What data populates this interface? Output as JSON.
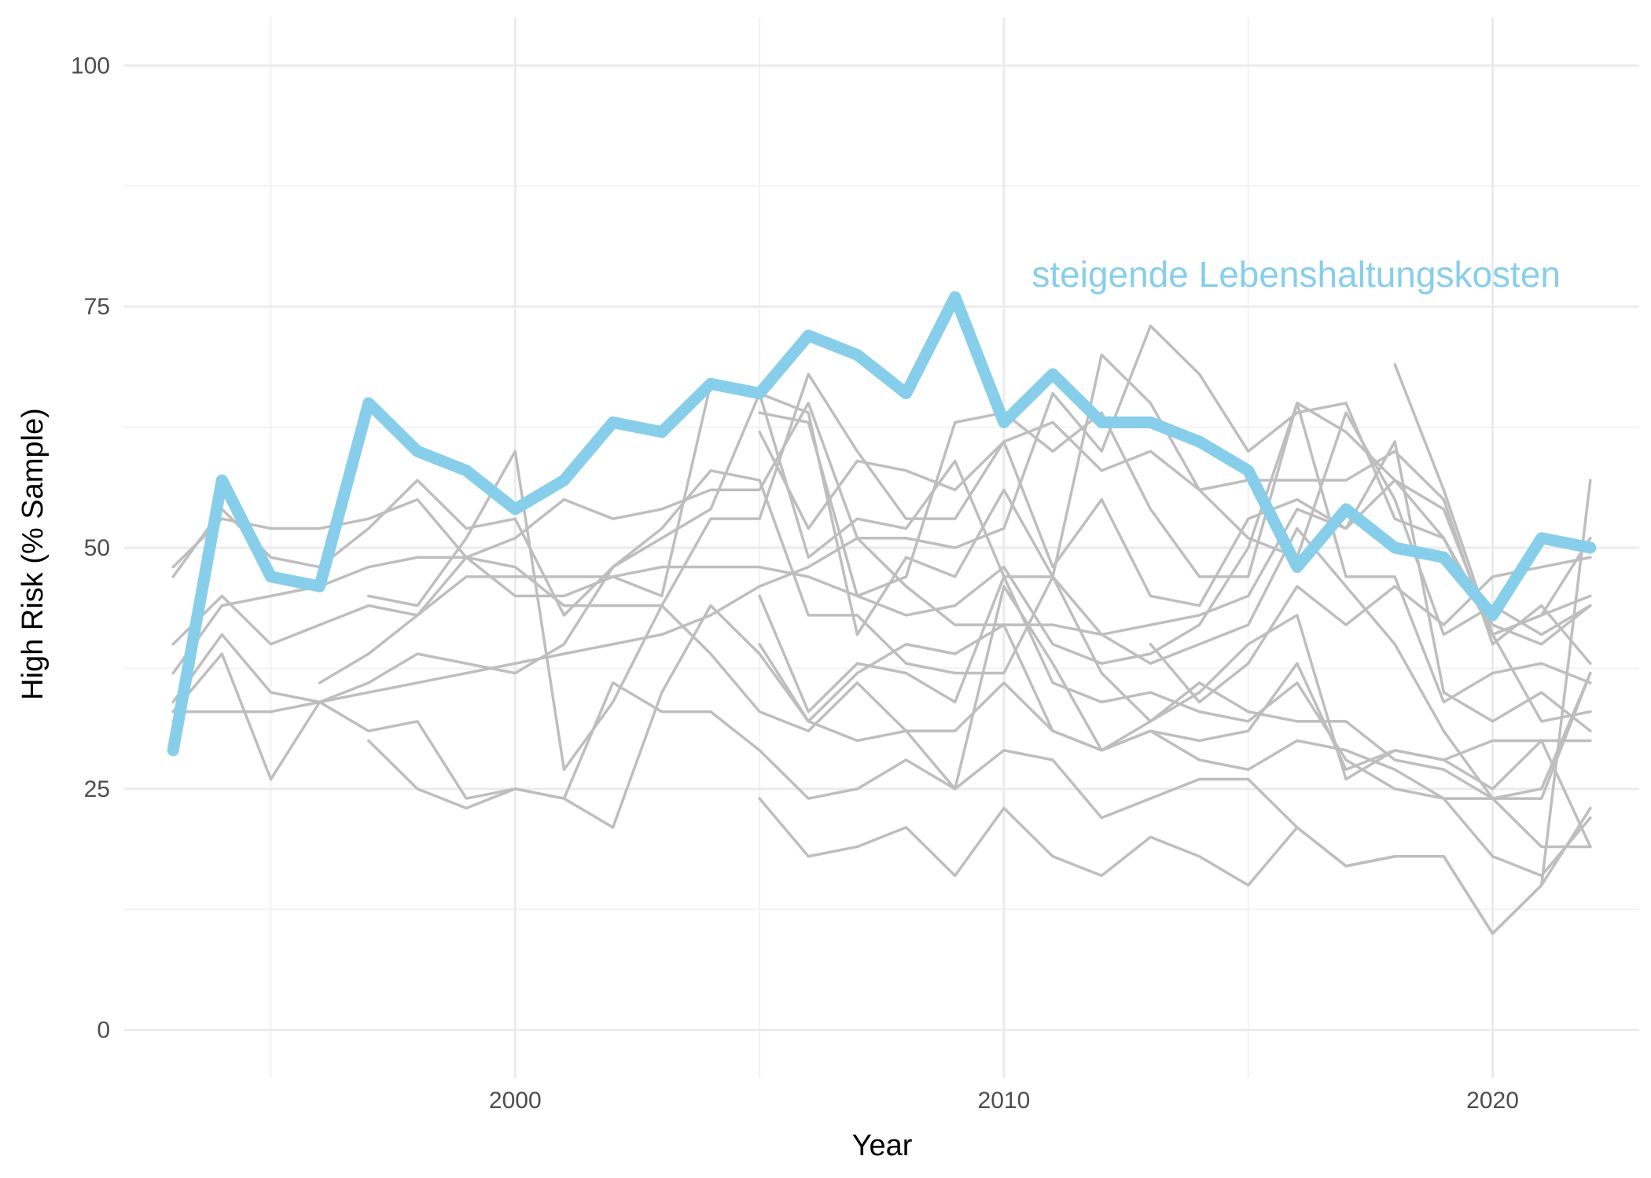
{
  "chart_data": {
    "type": "line",
    "title": "",
    "xlabel": "Year",
    "ylabel": "High Risk (% Sample)",
    "xlim": [
      1992,
      2023
    ],
    "ylim": [
      -5,
      105
    ],
    "x_ticks": [
      2000,
      2010,
      2020
    ],
    "y_ticks": [
      0,
      25,
      50,
      75,
      100
    ],
    "grid": true,
    "legend": "none",
    "colors": {
      "highlight": "#87ceeb",
      "background_series": "#bebebe",
      "grid": "#ebebeb"
    },
    "highlight": {
      "name": "steigende Lebenshaltungskosten",
      "label": "steigende Lebenshaltungskosten",
      "x": [
        1993,
        1994,
        1995,
        1996,
        1997,
        1998,
        1999,
        2000,
        2001,
        2002,
        2003,
        2004,
        2005,
        2006,
        2007,
        2008,
        2009,
        2010,
        2011,
        2012,
        2013,
        2014,
        2015,
        2016,
        2017,
        2018,
        2019,
        2020,
        2021,
        2022
      ],
      "values": [
        29,
        57,
        47,
        46,
        65,
        60,
        58,
        54,
        57,
        63,
        62,
        67,
        66,
        72,
        70,
        66,
        76,
        63,
        68,
        63,
        63,
        61,
        58,
        48,
        54,
        50,
        49,
        43,
        51,
        50
      ]
    },
    "series": [
      {
        "x": [
          1993,
          1994,
          1995,
          1996,
          1997,
          1998,
          1999,
          2000,
          2001,
          2002,
          2003,
          2004,
          2005,
          2006,
          2007,
          2008,
          2009,
          2010,
          2011,
          2012,
          2013,
          2014,
          2015,
          2016,
          2017,
          2018,
          2019,
          2020,
          2021,
          2022
        ],
        "values": [
          48,
          53,
          52,
          52,
          53,
          55,
          49,
          51,
          55,
          53,
          54,
          56,
          56,
          65,
          51,
          51,
          50,
          52,
          66,
          60,
          73,
          68,
          60,
          64,
          65,
          53,
          51,
          42,
          40,
          44
        ]
      },
      {
        "x": [
          1993,
          1994,
          1995,
          1996,
          1997,
          1998,
          1999,
          2000,
          2001,
          2002,
          2003,
          2004,
          2005,
          2006,
          2007,
          2008,
          2009,
          2010,
          2011,
          2012,
          2013,
          2014,
          2015,
          2016,
          2017,
          2018,
          2019,
          2020,
          2021,
          2022
        ],
        "values": [
          47,
          54,
          49,
          48,
          52,
          57,
          52,
          53,
          43,
          48,
          51,
          54,
          66,
          64,
          41,
          49,
          47,
          56,
          47,
          70,
          65,
          56,
          51,
          49,
          64,
          55,
          41,
          44,
          41,
          44
        ]
      },
      {
        "x": [
          1993,
          1994,
          1995,
          1996,
          1997,
          1998,
          1999,
          2000,
          2001,
          2002,
          2003,
          2004,
          2005,
          2006,
          2007,
          2008,
          2009,
          2010,
          2011,
          2012,
          2013,
          2014,
          2015,
          2016,
          2017,
          2018,
          2019,
          2020,
          2021,
          2022
        ],
        "values": [
          40,
          45,
          40,
          42,
          44,
          43,
          49,
          48,
          44,
          44,
          44,
          53,
          53,
          68,
          60,
          53,
          53,
          61,
          63,
          58,
          60,
          56,
          57,
          57,
          57,
          60,
          55,
          40,
          44,
          38
        ]
      },
      {
        "x": [
          1993,
          1994,
          1995,
          1996,
          1997,
          1998,
          1999,
          2000,
          2001,
          2002,
          2003,
          2004,
          2005,
          2006,
          2007,
          2008,
          2009,
          2010,
          2011,
          2012,
          2013,
          2014,
          2015,
          2016,
          2017,
          2018,
          2019,
          2020,
          2021,
          2022
        ],
        "values": [
          37,
          44,
          45,
          46,
          48,
          49,
          49,
          45,
          45,
          47,
          45,
          67,
          66,
          49,
          53,
          52,
          59,
          47,
          47,
          41,
          42,
          43,
          45,
          54,
          52,
          57,
          51,
          41,
          32,
          33
        ]
      },
      {
        "x": [
          1993,
          1994,
          1995,
          1996,
          1997,
          1998,
          1999,
          2000,
          2001,
          2002,
          2003,
          2004,
          2005,
          2006,
          2007,
          2008,
          2009,
          2010,
          2011,
          2012,
          2013,
          2014,
          2015,
          2016,
          2017,
          2018,
          2019,
          2020,
          2021,
          2022
        ],
        "values": [
          34,
          41,
          35,
          34,
          36,
          39,
          38,
          37,
          40,
          48,
          52,
          58,
          57,
          43,
          43,
          38,
          37,
          37,
          47,
          37,
          32,
          36,
          33,
          32,
          32,
          28,
          27,
          24,
          25,
          37
        ]
      },
      {
        "x": [
          1993,
          1994,
          1995,
          1996,
          1997,
          1998,
          1999,
          2000,
          2001,
          2002,
          2003,
          2004,
          2005,
          2006,
          2007,
          2008,
          2009,
          2010,
          2011,
          2012,
          2013,
          2014,
          2015,
          2016,
          2017,
          2018,
          2019,
          2020,
          2021,
          2022
        ],
        "values": [
          33,
          39,
          26,
          34,
          31,
          32,
          24,
          25,
          24,
          21,
          35,
          44,
          39,
          32,
          30,
          31,
          25,
          46,
          38,
          29,
          31,
          30,
          31,
          38,
          27,
          29,
          28,
          30,
          30,
          19
        ]
      },
      {
        "x": [
          1993,
          1994,
          1995,
          1996,
          1997,
          1998,
          1999,
          2000,
          2001,
          2002,
          2003,
          2004,
          2005,
          2006,
          2007,
          2008,
          2009,
          2010,
          2011,
          2012,
          2013,
          2014,
          2015,
          2016,
          2017,
          2018,
          2019,
          2020,
          2021,
          2022
        ],
        "values": [
          33,
          33,
          33,
          34,
          35,
          36,
          37,
          38,
          39,
          40,
          41,
          43,
          46,
          48,
          51,
          46,
          42,
          42,
          31,
          29,
          32,
          35,
          40,
          43,
          26,
          29,
          28,
          25,
          30,
          30
        ]
      },
      {
        "x": [
          1996,
          1997,
          1998,
          1999,
          2000,
          2001,
          2002,
          2003,
          2004,
          2005,
          2006,
          2007,
          2008,
          2009,
          2010,
          2011,
          2012,
          2013,
          2014,
          2015,
          2016,
          2017,
          2018,
          2019,
          2020,
          2021,
          2022
        ],
        "values": [
          36,
          39,
          43,
          47,
          47,
          47,
          47,
          48,
          48,
          48,
          47,
          45,
          43,
          44,
          48,
          40,
          38,
          39,
          42,
          50,
          65,
          62,
          57,
          54,
          41,
          43,
          45
        ]
      },
      {
        "x": [
          1997,
          1998,
          1999,
          2000,
          2001,
          2002,
          2003,
          2004,
          2005,
          2006,
          2007,
          2008,
          2009,
          2010,
          2011,
          2012,
          2013,
          2014,
          2015,
          2016,
          2017,
          2018,
          2019,
          2020,
          2021,
          2022
        ],
        "values": [
          45,
          44,
          51,
          60,
          27,
          34,
          44,
          39,
          33,
          31,
          36,
          31,
          31,
          36,
          31,
          29,
          31,
          28,
          27,
          30,
          29,
          27,
          24,
          24,
          19,
          19
        ]
      },
      {
        "x": [
          1997,
          1998,
          1999,
          2000,
          2001,
          2002,
          2003,
          2004,
          2005,
          2006,
          2007,
          2008,
          2009,
          2010,
          2011,
          2012,
          2013,
          2014,
          2015,
          2016,
          2017,
          2018,
          2019,
          2020,
          2021,
          2022
        ],
        "values": [
          30,
          25,
          23,
          25,
          24,
          36,
          33,
          33,
          29,
          24,
          25,
          28,
          25,
          29,
          28,
          22,
          24,
          26,
          26,
          21,
          17,
          18,
          18,
          10,
          15,
          23
        ]
      },
      {
        "x": [
          2005,
          2006,
          2007,
          2008,
          2009,
          2010,
          2011,
          2012,
          2013,
          2014,
          2015,
          2016,
          2017,
          2018,
          2019,
          2020,
          2021,
          2022
        ],
        "values": [
          45,
          33,
          38,
          37,
          34,
          47,
          36,
          34,
          35,
          33,
          32,
          36,
          28,
          25,
          24,
          18,
          16,
          22
        ]
      },
      {
        "x": [
          2005,
          2006,
          2007,
          2008,
          2009,
          2010,
          2011,
          2012,
          2013,
          2014,
          2015,
          2016,
          2017,
          2018,
          2019,
          2020,
          2021,
          2022
        ],
        "values": [
          40,
          32,
          37,
          40,
          39,
          42,
          42,
          41,
          38,
          40,
          42,
          52,
          46,
          40,
          31,
          24,
          24,
          37
        ]
      },
      {
        "x": [
          2005,
          2006,
          2007,
          2008,
          2009,
          2010,
          2011,
          2012,
          2013,
          2014,
          2015,
          2016,
          2017,
          2018,
          2019,
          2020,
          2021,
          2022
        ],
        "values": [
          24,
          18,
          19,
          21,
          16,
          23,
          18,
          16,
          20,
          18,
          15,
          21,
          17,
          18,
          18,
          10,
          15,
          57
        ]
      },
      {
        "x": [
          2005,
          2006,
          2007,
          2008,
          2009,
          2010,
          2011,
          2012,
          2013,
          2014,
          2015,
          2016,
          2017,
          2018,
          2019,
          2020,
          2021,
          2022
        ],
        "values": [
          64,
          63,
          45,
          47,
          63,
          64,
          60,
          64,
          54,
          47,
          47,
          65,
          47,
          47,
          34,
          37,
          38,
          36
        ]
      },
      {
        "x": [
          2005,
          2006,
          2007,
          2008,
          2009,
          2010,
          2011,
          2012,
          2013,
          2014,
          2015,
          2016,
          2017,
          2018,
          2019,
          2020,
          2021,
          2022
        ],
        "values": [
          62,
          52,
          59,
          58,
          56,
          61,
          48,
          55,
          45,
          44,
          53,
          55,
          52,
          61,
          35,
          32,
          35,
          31
        ]
      },
      {
        "x": [
          2013,
          2014,
          2015,
          2016,
          2017,
          2018,
          2019,
          2020,
          2021,
          2022
        ],
        "values": [
          40,
          34,
          38,
          46,
          42,
          46,
          42,
          47,
          48,
          49
        ]
      },
      {
        "x": [
          2018,
          2019,
          2020,
          2021,
          2022
        ],
        "values": [
          69,
          56,
          41,
          43,
          51
        ]
      }
    ]
  }
}
